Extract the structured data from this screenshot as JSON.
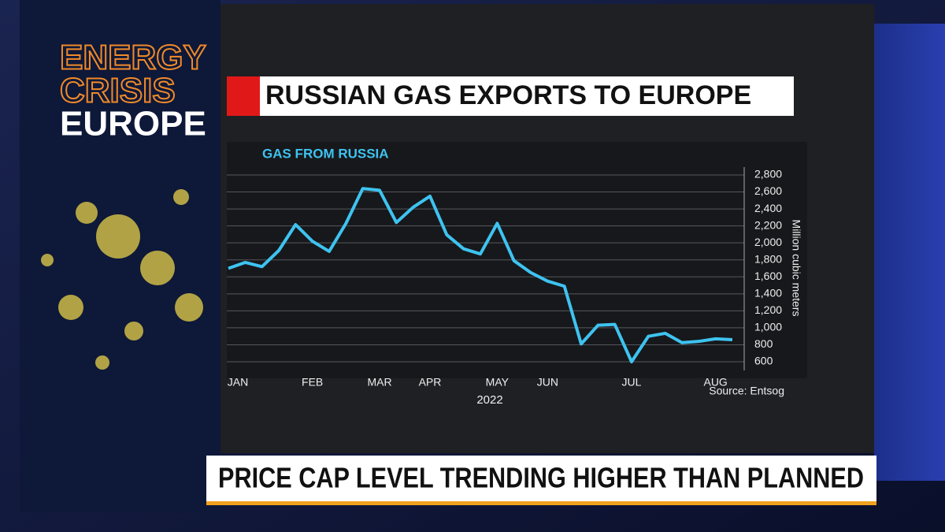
{
  "show_tag": [
    "ENERGY",
    "CRISIS",
    "EUROPE"
  ],
  "lower_third": "PRICE CAP LEVEL TRENDING HIGHER THAN PLANNED",
  "chart_data": {
    "type": "line",
    "title": "RUSSIAN GAS EXPORTS TO EUROPE",
    "subtitle": "GAS FROM RUSSIA",
    "y_label": "Million cubic meters",
    "x_label": "2022",
    "source": "Source: Entsog",
    "categories": [
      "JAN",
      null,
      null,
      null,
      null,
      "FEB",
      null,
      null,
      null,
      "MAR",
      null,
      null,
      "APR",
      null,
      null,
      null,
      "MAY",
      null,
      null,
      "JUN",
      null,
      null,
      null,
      null,
      "JUL",
      null,
      null,
      null,
      null,
      "AUG",
      null
    ],
    "series": [
      {
        "name": "GAS FROM RUSSIA",
        "color": "#3ec3f0",
        "values": [
          1700,
          1770,
          1720,
          1910,
          2215,
          2020,
          1900,
          2230,
          2640,
          2620,
          2240,
          2420,
          2550,
          2095,
          1930,
          1870,
          2230,
          1790,
          1650,
          1550,
          1490,
          810,
          1030,
          1040,
          600,
          900,
          935,
          825,
          840,
          870,
          860
        ]
      }
    ],
    "ylim": [
      600,
      2800
    ],
    "yticks": [
      600,
      800,
      {
        "value": 1000,
        "label": "1,000"
      },
      {
        "value": 1200,
        "label": "1,200"
      },
      {
        "value": 1400,
        "label": "1,400"
      },
      {
        "value": 1600,
        "label": "1,600"
      },
      {
        "value": 1800,
        "label": "1,800"
      },
      {
        "value": 2000,
        "label": "2,000"
      },
      {
        "value": 2200,
        "label": "2,200"
      },
      {
        "value": 2400,
        "label": "2,400"
      },
      {
        "value": 2600,
        "label": "2,600"
      },
      {
        "value": 2800,
        "label": "2,800"
      }
    ],
    "grid": true
  }
}
